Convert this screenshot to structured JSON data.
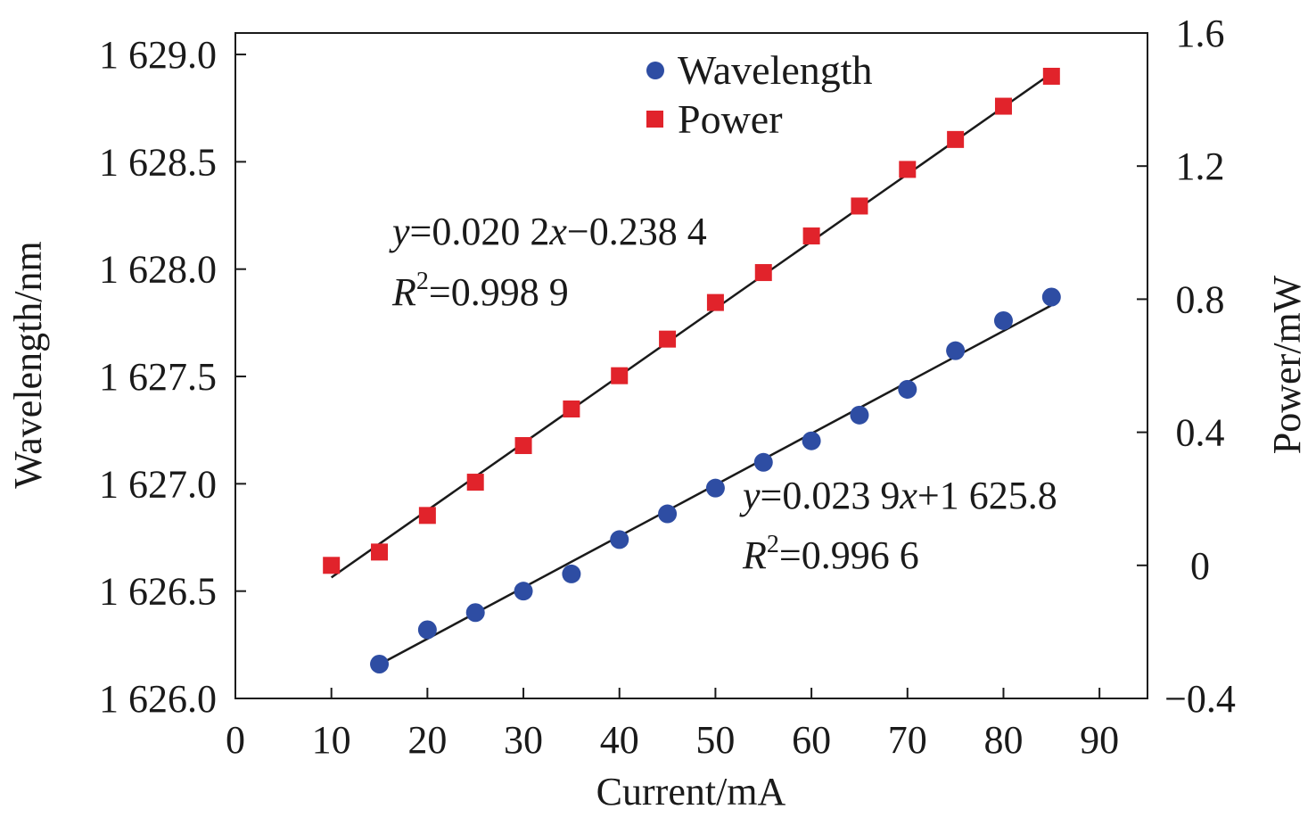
{
  "chart_data": {
    "type": "scatter",
    "xlabel": "Current/mA",
    "ylabel_left": "Wavelength/nm",
    "ylabel_right": "Power/mW",
    "xlim": [
      0,
      95
    ],
    "ylim_left": [
      1626.0,
      1629.1
    ],
    "ylim_right": [
      -0.4,
      1.6
    ],
    "x_ticks": [
      "0",
      "10",
      "20",
      "30",
      "40",
      "50",
      "60",
      "70",
      "80",
      "90"
    ],
    "y_left_ticks": [
      "1 626.0",
      "1 626.5",
      "1 627.0",
      "1 627.5",
      "1 628.0",
      "1 628.5",
      "1 629.0"
    ],
    "y_right_ticks": [
      "−0.4",
      "0",
      "0.4",
      "0.8",
      "1.2",
      "1.6"
    ],
    "legend_position": "top-center",
    "series": [
      {
        "name": "Wavelength",
        "axis": "left",
        "marker": "circle",
        "color": "#2e4da3",
        "x": [
          15,
          20,
          25,
          30,
          35,
          40,
          45,
          50,
          55,
          60,
          65,
          70,
          75,
          80,
          85
        ],
        "values": [
          1626.16,
          1626.32,
          1626.4,
          1626.5,
          1626.58,
          1626.74,
          1626.86,
          1626.98,
          1627.1,
          1627.2,
          1627.32,
          1627.44,
          1627.62,
          1627.76,
          1627.87
        ],
        "fit": {
          "slope": 0.0239,
          "intercept": 1625.8,
          "equation_prefix": "=0.023 9",
          "equation_suffix": "+1 625.8",
          "r2_label": "=0.996 6"
        }
      },
      {
        "name": "Power",
        "axis": "right",
        "marker": "square",
        "color": "#e1232b",
        "x": [
          10,
          15,
          20,
          25,
          30,
          35,
          40,
          45,
          50,
          55,
          60,
          65,
          70,
          75,
          80,
          85
        ],
        "values": [
          0.0,
          0.04,
          0.15,
          0.25,
          0.36,
          0.47,
          0.57,
          0.68,
          0.79,
          0.88,
          0.99,
          1.08,
          1.19,
          1.28,
          1.38,
          1.47
        ],
        "fit": {
          "slope": 0.0202,
          "intercept": -0.2384,
          "equation_prefix": "=0.020 2",
          "equation_suffix": "−0.238 4",
          "r2_label": "=0.998 9"
        }
      }
    ]
  },
  "annotation_symbols": {
    "y": "y",
    "x": "x",
    "r": "R",
    "r_sup": "2"
  }
}
